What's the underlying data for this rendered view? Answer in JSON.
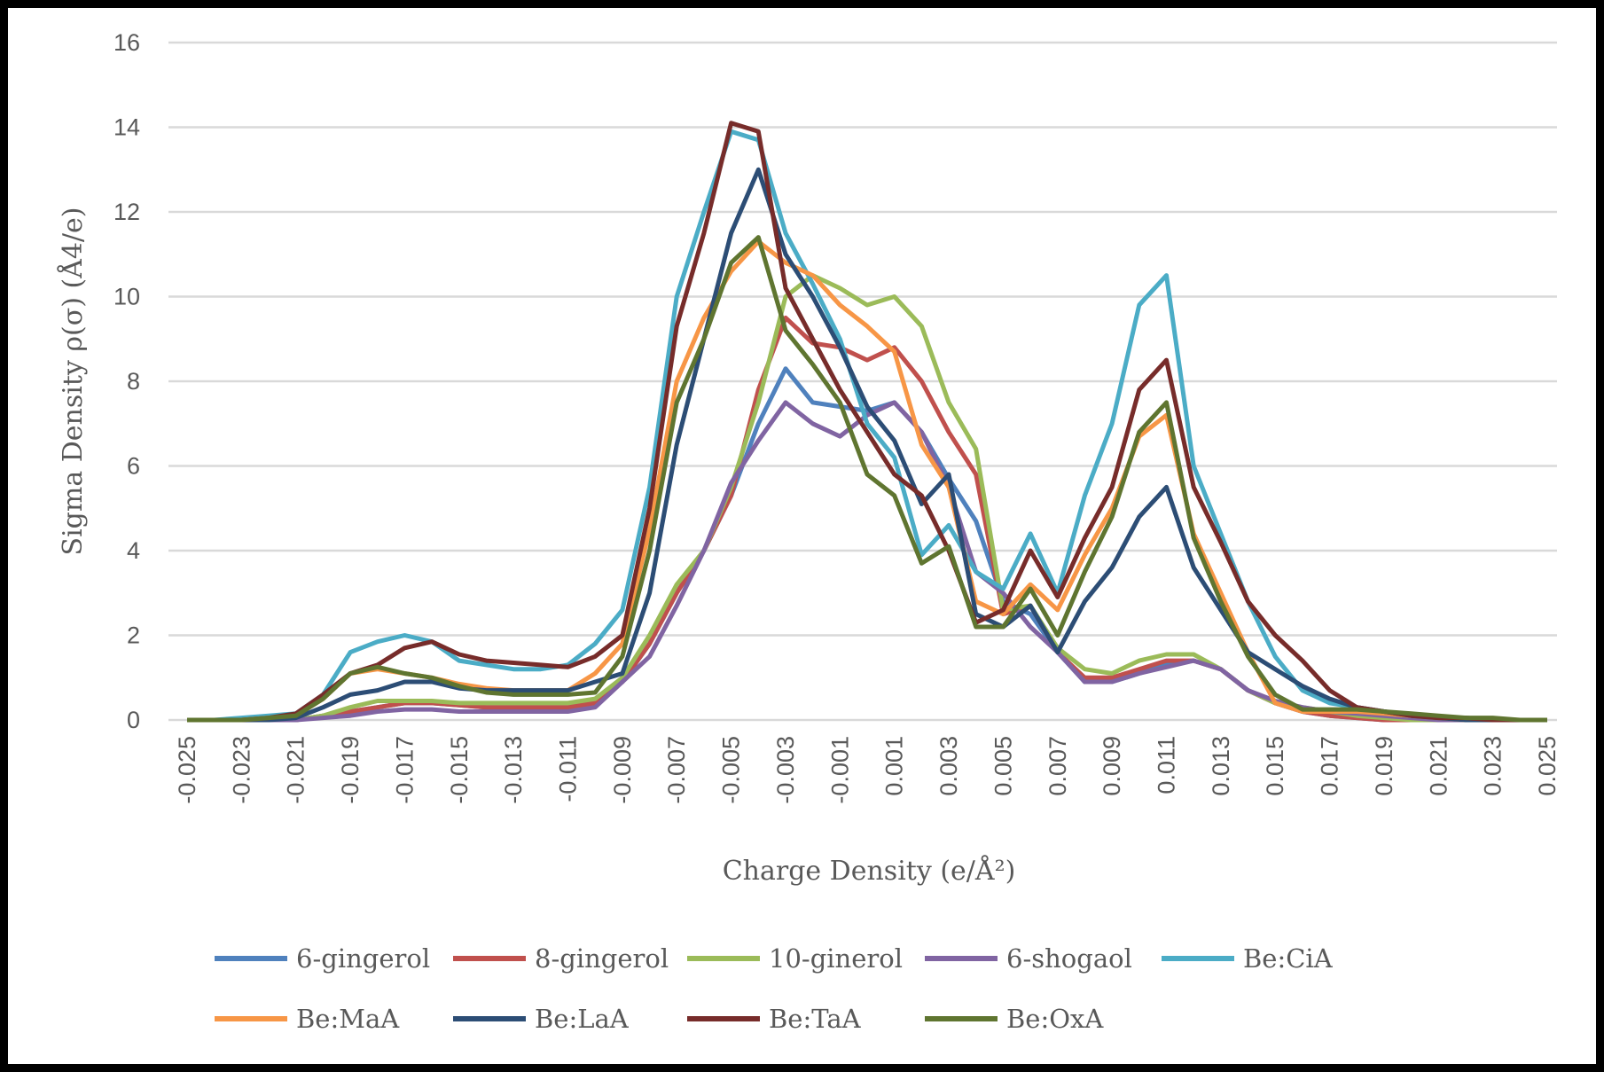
{
  "chart_data": {
    "type": "line",
    "title": "",
    "xlabel": "Charge  Density (e/Å²)",
    "ylabel": "Sigma Density ρ(σ) (Å4/e)",
    "xlim": [
      -0.025,
      0.025
    ],
    "ylim": [
      0,
      16
    ],
    "y_ticks": [
      "0",
      "2",
      "4",
      "6",
      "8",
      "10",
      "12",
      "14",
      "16"
    ],
    "x_ticks": [
      "-0.025",
      "-0.023",
      "-0.021",
      "-0.019",
      "-0.017",
      "-0.015",
      "-0.013",
      "-0.011",
      "-0.009",
      "-0.007",
      "-0.005",
      "-0.003",
      "-0.001",
      "0.001",
      "0.003",
      "0.005",
      "0.007",
      "0.009",
      "0.011",
      "0.013",
      "0.015",
      "0.017",
      "0.019",
      "0.021",
      "0.023",
      "0.025"
    ],
    "x_start": -0.025,
    "x_step": 0.001,
    "grid": true,
    "legend_position": "bottom",
    "series": [
      {
        "name": "6-gingerol",
        "color": "#4f81bd",
        "values": [
          0,
          0,
          0,
          0,
          0,
          0.1,
          0.2,
          0.3,
          0.4,
          0.4,
          0.35,
          0.3,
          0.3,
          0.3,
          0.3,
          0.4,
          0.9,
          1.8,
          3.0,
          4.0,
          5.3,
          7.0,
          8.3,
          7.5,
          7.4,
          7.3,
          7.5,
          6.8,
          5.7,
          4.7,
          2.8,
          2.5,
          1.6,
          0.9,
          0.9,
          1.1,
          1.3,
          1.4,
          1.2,
          0.7,
          0.4,
          0.2,
          0.1,
          0.05,
          0,
          0,
          0,
          0,
          0,
          0,
          0
        ]
      },
      {
        "name": "8-gingerol",
        "color": "#c0504d",
        "values": [
          0,
          0,
          0,
          0,
          0,
          0.1,
          0.2,
          0.3,
          0.4,
          0.4,
          0.35,
          0.3,
          0.3,
          0.3,
          0.3,
          0.4,
          0.9,
          1.8,
          3.0,
          4.0,
          5.3,
          7.8,
          9.5,
          8.9,
          8.8,
          8.5,
          8.8,
          8.0,
          6.8,
          5.8,
          2.5,
          2.7,
          1.6,
          1.0,
          1.0,
          1.2,
          1.4,
          1.4,
          1.2,
          0.7,
          0.4,
          0.2,
          0.1,
          0.05,
          0,
          0,
          0,
          0,
          0,
          0,
          0
        ]
      },
      {
        "name": "10-ginerol",
        "color": "#9bbb59",
        "values": [
          0,
          0,
          0,
          0,
          0,
          0.1,
          0.3,
          0.45,
          0.45,
          0.45,
          0.4,
          0.4,
          0.4,
          0.4,
          0.4,
          0.5,
          1.0,
          2.0,
          3.2,
          4.0,
          5.5,
          7.5,
          10.0,
          10.5,
          10.2,
          9.8,
          10.0,
          9.3,
          7.5,
          6.4,
          2.6,
          2.7,
          1.7,
          1.2,
          1.1,
          1.4,
          1.55,
          1.55,
          1.2,
          0.7,
          0.4,
          0.3,
          0.2,
          0.1,
          0.05,
          0,
          0,
          0,
          0,
          0,
          0
        ]
      },
      {
        "name": "6-shogaol",
        "color": "#8064a2",
        "values": [
          0,
          0,
          0,
          0,
          0,
          0.05,
          0.1,
          0.2,
          0.25,
          0.25,
          0.2,
          0.2,
          0.2,
          0.2,
          0.2,
          0.3,
          0.9,
          1.5,
          2.7,
          4.0,
          5.6,
          6.6,
          7.5,
          7.0,
          6.7,
          7.2,
          7.5,
          6.8,
          5.5,
          3.5,
          3.0,
          2.2,
          1.6,
          0.9,
          0.9,
          1.1,
          1.25,
          1.4,
          1.2,
          0.7,
          0.45,
          0.3,
          0.2,
          0.15,
          0.1,
          0.05,
          0,
          0,
          0,
          0,
          0
        ]
      },
      {
        "name": "Be:CiA",
        "color": "#4bacc6",
        "values": [
          0,
          0,
          0.05,
          0.1,
          0.15,
          0.6,
          1.6,
          1.85,
          2.0,
          1.85,
          1.4,
          1.3,
          1.2,
          1.2,
          1.3,
          1.8,
          2.6,
          5.5,
          10.0,
          12.0,
          13.9,
          13.7,
          11.5,
          10.3,
          9.0,
          7.0,
          6.2,
          3.9,
          4.6,
          3.5,
          3.1,
          4.4,
          3.0,
          5.3,
          7.0,
          9.8,
          10.5,
          6.0,
          4.4,
          2.8,
          1.5,
          0.7,
          0.4,
          0.3,
          0.2,
          0.1,
          0.05,
          0.05,
          0,
          0,
          0
        ]
      },
      {
        "name": "Be:MaA",
        "color": "#f79646",
        "values": [
          0,
          0,
          0,
          0.05,
          0.1,
          0.5,
          1.1,
          1.2,
          1.1,
          1.0,
          0.85,
          0.75,
          0.7,
          0.7,
          0.7,
          1.1,
          1.8,
          4.5,
          8.0,
          9.5,
          10.6,
          11.3,
          10.8,
          10.5,
          9.8,
          9.3,
          8.7,
          6.5,
          5.5,
          2.8,
          2.5,
          3.2,
          2.6,
          3.9,
          5.0,
          6.7,
          7.2,
          4.4,
          3.0,
          1.6,
          0.4,
          0.2,
          0.2,
          0.2,
          0.15,
          0.1,
          0.05,
          0,
          0,
          0,
          0
        ]
      },
      {
        "name": "Be:LaA",
        "color": "#2c4d75",
        "values": [
          0,
          0,
          0,
          0,
          0.05,
          0.3,
          0.6,
          0.7,
          0.9,
          0.9,
          0.75,
          0.7,
          0.7,
          0.7,
          0.7,
          0.9,
          1.1,
          3.0,
          6.5,
          9.0,
          11.5,
          13.0,
          11.0,
          10.0,
          8.8,
          7.4,
          6.6,
          5.1,
          5.8,
          2.5,
          2.2,
          2.7,
          1.6,
          2.8,
          3.6,
          4.8,
          5.5,
          3.6,
          2.6,
          1.6,
          1.2,
          0.8,
          0.5,
          0.3,
          0.2,
          0.1,
          0.05,
          0,
          0,
          0,
          0
        ]
      },
      {
        "name": "Be:TaA",
        "color": "#772c2a",
        "values": [
          0,
          0,
          0,
          0.05,
          0.15,
          0.6,
          1.1,
          1.3,
          1.7,
          1.85,
          1.55,
          1.4,
          1.35,
          1.3,
          1.25,
          1.5,
          2.0,
          5.0,
          9.3,
          11.5,
          14.1,
          13.9,
          10.2,
          9.0,
          7.8,
          6.8,
          5.8,
          5.3,
          4.0,
          2.3,
          2.6,
          4.0,
          2.9,
          4.3,
          5.5,
          7.8,
          8.5,
          5.5,
          4.2,
          2.8,
          2.0,
          1.4,
          0.7,
          0.3,
          0.2,
          0.1,
          0.05,
          0.05,
          0,
          0,
          0
        ]
      },
      {
        "name": "Be:OxA",
        "color": "#5f7530",
        "values": [
          0,
          0,
          0,
          0.05,
          0.1,
          0.5,
          1.1,
          1.25,
          1.1,
          1.0,
          0.8,
          0.65,
          0.6,
          0.6,
          0.6,
          0.65,
          1.5,
          4.0,
          7.5,
          9.0,
          10.8,
          11.4,
          9.2,
          8.4,
          7.5,
          5.8,
          5.3,
          3.7,
          4.1,
          2.2,
          2.2,
          3.1,
          2.0,
          3.5,
          4.8,
          6.8,
          7.5,
          4.3,
          2.8,
          1.5,
          0.6,
          0.25,
          0.25,
          0.25,
          0.2,
          0.15,
          0.1,
          0.05,
          0.05,
          0,
          0
        ]
      }
    ]
  }
}
